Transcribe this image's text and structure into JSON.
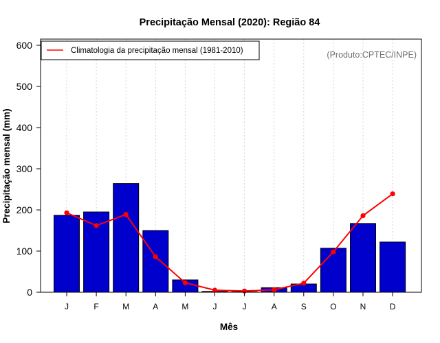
{
  "chart_data": {
    "type": "bar",
    "title": "Precipitação Mensal (2020): Região 84",
    "xlabel": "Mês",
    "ylabel": "Precipitação mensal (mm)",
    "ylim": [
      0,
      600
    ],
    "yticks": [
      0,
      100,
      200,
      300,
      400,
      500,
      600
    ],
    "grid": "vertical dotted",
    "legend_position": "top-left",
    "categories": [
      "J",
      "F",
      "M",
      "A",
      "M",
      "J",
      "J",
      "A",
      "S",
      "O",
      "N",
      "D"
    ],
    "series": [
      {
        "name": "Precipitação mensal 2020",
        "type": "bar",
        "color": "#0000cd",
        "values": [
          187,
          195,
          264,
          150,
          30,
          2,
          1,
          11,
          20,
          107,
          167,
          122
        ]
      },
      {
        "name": "Climatologia da precipitação mensal (1981-2010)",
        "type": "line",
        "color": "#ff0000",
        "values": [
          193,
          162,
          189,
          86,
          23,
          5,
          3,
          6,
          22,
          98,
          186,
          239
        ]
      }
    ],
    "annotation": "(Produto:CPTEC/INPE)"
  }
}
